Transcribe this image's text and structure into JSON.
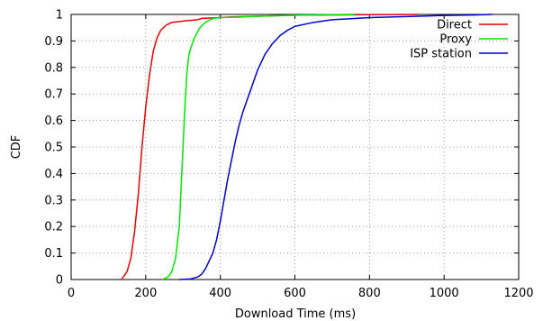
{
  "chart_data": {
    "type": "line",
    "title": "",
    "xlabel": "Download Time (ms)",
    "ylabel": "CDF",
    "xlim": [
      0,
      1200
    ],
    "ylim": [
      0,
      1
    ],
    "x_ticks": [
      0,
      200,
      400,
      600,
      800,
      1000,
      1200
    ],
    "y_ticks": [
      0,
      0.1,
      0.2,
      0.3,
      0.4,
      0.5,
      0.6,
      0.7,
      0.8,
      0.9,
      1
    ],
    "x_tick_labels": [
      "0",
      "200",
      "400",
      "600",
      "800",
      "1000",
      "1200"
    ],
    "y_tick_labels": [
      "0",
      "0.1",
      "0.2",
      "0.3",
      "0.4",
      "0.5",
      "0.6",
      "0.7",
      "0.8",
      "0.9",
      "1"
    ],
    "grid": true,
    "legend_position": "top-right",
    "series": [
      {
        "name": "Direct",
        "color": "#e60000",
        "points": [
          [
            135,
            0
          ],
          [
            150,
            0.03
          ],
          [
            160,
            0.08
          ],
          [
            170,
            0.18
          ],
          [
            180,
            0.32
          ],
          [
            190,
            0.5
          ],
          [
            200,
            0.65
          ],
          [
            210,
            0.77
          ],
          [
            220,
            0.86
          ],
          [
            230,
            0.91
          ],
          [
            240,
            0.94
          ],
          [
            255,
            0.96
          ],
          [
            270,
            0.97
          ],
          [
            300,
            0.975
          ],
          [
            340,
            0.98
          ],
          [
            350,
            0.985
          ],
          [
            380,
            0.987
          ],
          [
            420,
            0.99
          ],
          [
            500,
            0.993
          ],
          [
            600,
            0.997
          ],
          [
            800,
            0.999
          ],
          [
            930,
            1
          ]
        ]
      },
      {
        "name": "Proxy",
        "color": "#00e600",
        "points": [
          [
            245,
            0
          ],
          [
            260,
            0.01
          ],
          [
            270,
            0.03
          ],
          [
            280,
            0.08
          ],
          [
            290,
            0.2
          ],
          [
            295,
            0.35
          ],
          [
            300,
            0.5
          ],
          [
            305,
            0.65
          ],
          [
            310,
            0.77
          ],
          [
            315,
            0.84
          ],
          [
            320,
            0.87
          ],
          [
            330,
            0.91
          ],
          [
            345,
            0.95
          ],
          [
            360,
            0.97
          ],
          [
            380,
            0.985
          ],
          [
            400,
            0.988
          ],
          [
            450,
            0.99
          ],
          [
            500,
            0.993
          ],
          [
            600,
            0.997
          ],
          [
            700,
            0.999
          ],
          [
            760,
            1
          ]
        ]
      },
      {
        "name": "ISP station",
        "color": "#0000cc",
        "points": [
          [
            290,
            0
          ],
          [
            320,
            0.002
          ],
          [
            340,
            0.01
          ],
          [
            350,
            0.02
          ],
          [
            360,
            0.04
          ],
          [
            370,
            0.07
          ],
          [
            380,
            0.1
          ],
          [
            390,
            0.15
          ],
          [
            400,
            0.22
          ],
          [
            410,
            0.3
          ],
          [
            420,
            0.38
          ],
          [
            430,
            0.45
          ],
          [
            440,
            0.52
          ],
          [
            450,
            0.58
          ],
          [
            460,
            0.63
          ],
          [
            480,
            0.71
          ],
          [
            500,
            0.79
          ],
          [
            520,
            0.85
          ],
          [
            540,
            0.89
          ],
          [
            560,
            0.92
          ],
          [
            580,
            0.94
          ],
          [
            600,
            0.955
          ],
          [
            650,
            0.97
          ],
          [
            700,
            0.98
          ],
          [
            800,
            0.988
          ],
          [
            900,
            0.992
          ],
          [
            1000,
            0.996
          ],
          [
            1080,
            0.998
          ],
          [
            1130,
            1
          ]
        ]
      }
    ]
  }
}
